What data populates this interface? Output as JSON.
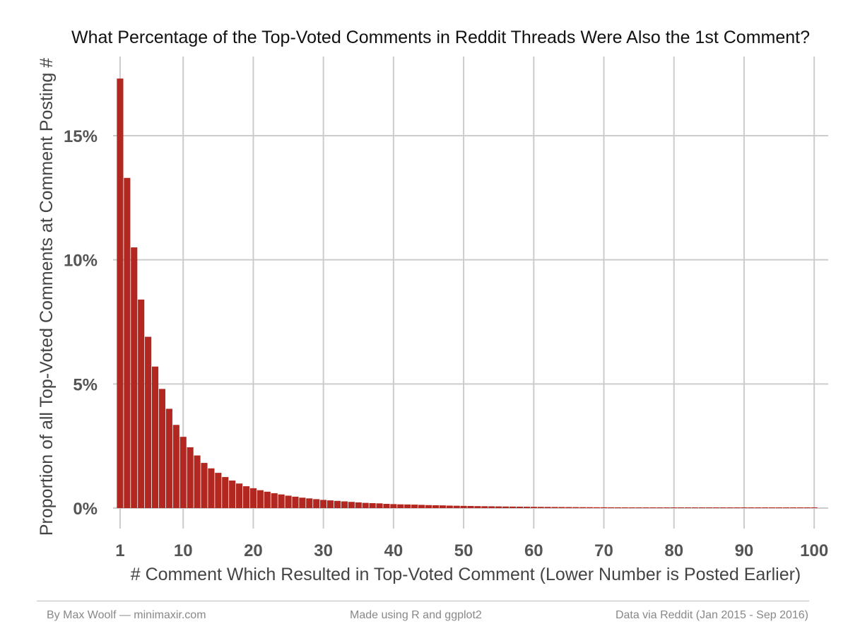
{
  "chart_data": {
    "type": "bar",
    "title": "What Percentage of the Top-Voted Comments in Reddit Threads Were Also the 1st Comment?",
    "xlabel": "# Comment Which Resulted in Top-Voted Comment (Lower Number is Posted Earlier)",
    "ylabel": "Proportion of all Top-Voted Comments at Comment Posting #",
    "x_ticks": [
      1,
      10,
      20,
      30,
      40,
      50,
      60,
      70,
      80,
      90,
      100
    ],
    "y_ticks": [
      0,
      5,
      10,
      15
    ],
    "y_tick_labels": [
      "0%",
      "5%",
      "10%",
      "15%"
    ],
    "xlim": [
      0,
      102
    ],
    "ylim": [
      0,
      17.5
    ],
    "bar_color": "#b2271f",
    "grid": true,
    "x": [
      1,
      2,
      3,
      4,
      5,
      6,
      7,
      8,
      9,
      10,
      11,
      12,
      13,
      14,
      15,
      16,
      17,
      18,
      19,
      20,
      21,
      22,
      23,
      24,
      25,
      26,
      27,
      28,
      29,
      30,
      31,
      32,
      33,
      34,
      35,
      36,
      37,
      38,
      39,
      40,
      41,
      42,
      43,
      44,
      45,
      46,
      47,
      48,
      49,
      50,
      51,
      52,
      53,
      54,
      55,
      56,
      57,
      58,
      59,
      60,
      61,
      62,
      63,
      64,
      65,
      66,
      67,
      68,
      69,
      70,
      71,
      72,
      73,
      74,
      75,
      76,
      77,
      78,
      79,
      80,
      81,
      82,
      83,
      84,
      85,
      86,
      87,
      88,
      89,
      90,
      91,
      92,
      93,
      94,
      95,
      96,
      97,
      98,
      99,
      100
    ],
    "values": [
      17.3,
      13.3,
      10.5,
      8.4,
      6.9,
      5.7,
      4.8,
      4.0,
      3.35,
      2.87,
      2.45,
      2.12,
      1.82,
      1.6,
      1.42,
      1.25,
      1.11,
      0.99,
      0.88,
      0.8,
      0.72,
      0.66,
      0.6,
      0.55,
      0.5,
      0.46,
      0.42,
      0.39,
      0.36,
      0.33,
      0.31,
      0.29,
      0.27,
      0.25,
      0.23,
      0.21,
      0.2,
      0.19,
      0.17,
      0.16,
      0.15,
      0.145,
      0.14,
      0.13,
      0.12,
      0.115,
      0.11,
      0.1,
      0.095,
      0.09,
      0.085,
      0.08,
      0.076,
      0.072,
      0.068,
      0.064,
      0.061,
      0.058,
      0.055,
      0.052,
      0.049,
      0.047,
      0.045,
      0.043,
      0.041,
      0.039,
      0.037,
      0.036,
      0.034,
      0.033,
      0.031,
      0.03,
      0.029,
      0.028,
      0.027,
      0.026,
      0.025,
      0.024,
      0.023,
      0.022,
      0.021,
      0.021,
      0.02,
      0.02,
      0.019,
      0.019,
      0.018,
      0.018,
      0.017,
      0.017,
      0.016,
      0.016,
      0.016,
      0.015,
      0.015,
      0.015,
      0.014,
      0.014,
      0.014,
      0.013
    ]
  },
  "footer": {
    "left": "By Max Woolf — minimaxir.com",
    "center": "Made using R and ggplot2",
    "right": "Data via Reddit (Jan 2015 - Sep 2016)"
  }
}
